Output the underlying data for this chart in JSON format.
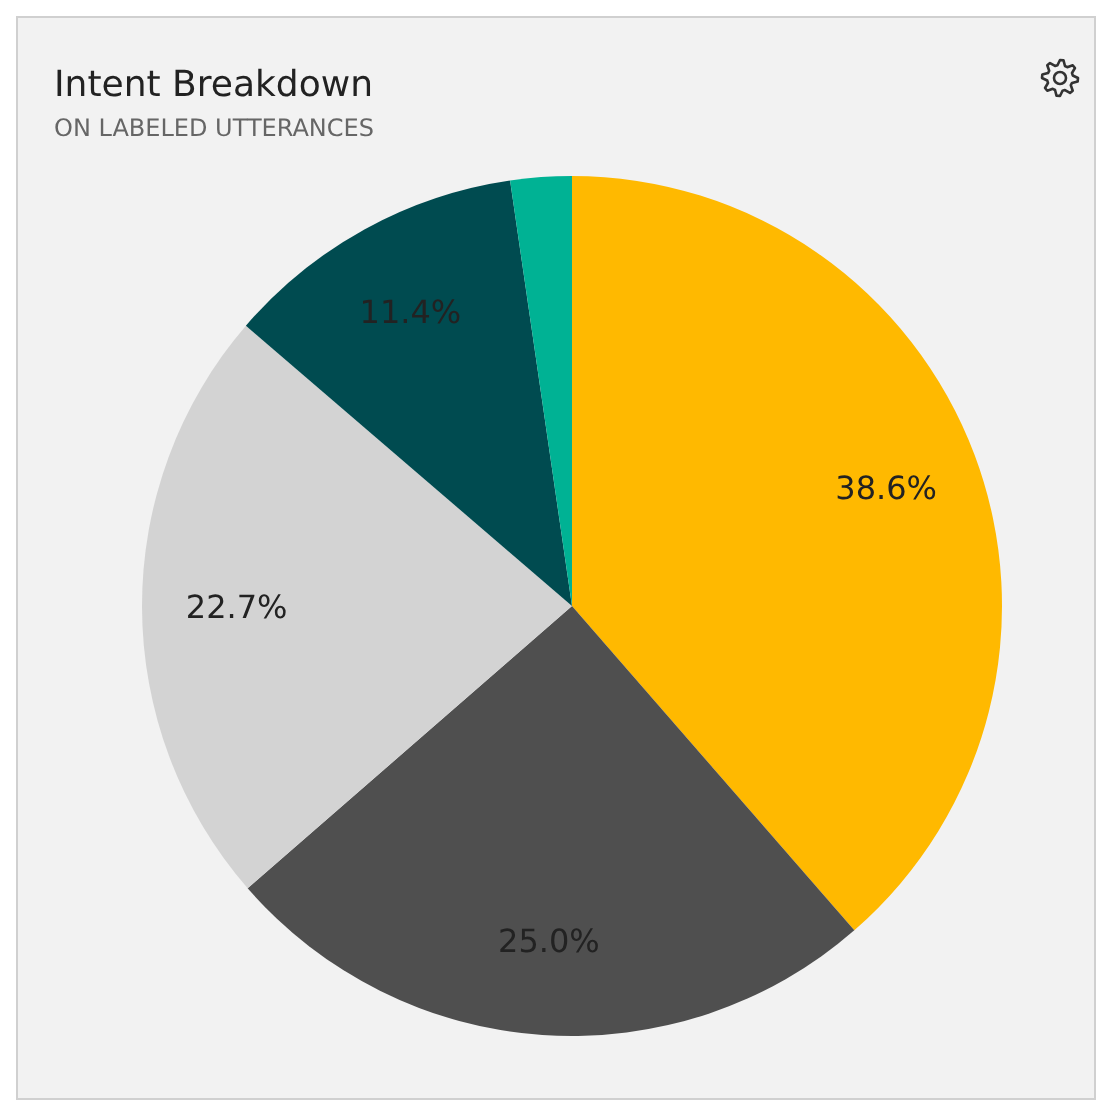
{
  "chart_data": {
    "type": "pie",
    "title": "Intent Breakdown",
    "subtitle": "ON LABELED UTTERANCES",
    "categories": [
      null,
      null,
      null,
      null,
      null
    ],
    "values": [
      38.6,
      25.0,
      22.7,
      11.4,
      2.3
    ],
    "colors": [
      "#ffb900",
      "#4f4f4f",
      "#d3d3d3",
      "#004b50",
      "#00b294"
    ],
    "value_labels": [
      "38.6%",
      "25.0%",
      "22.7%",
      "11.4%",
      null
    ]
  }
}
